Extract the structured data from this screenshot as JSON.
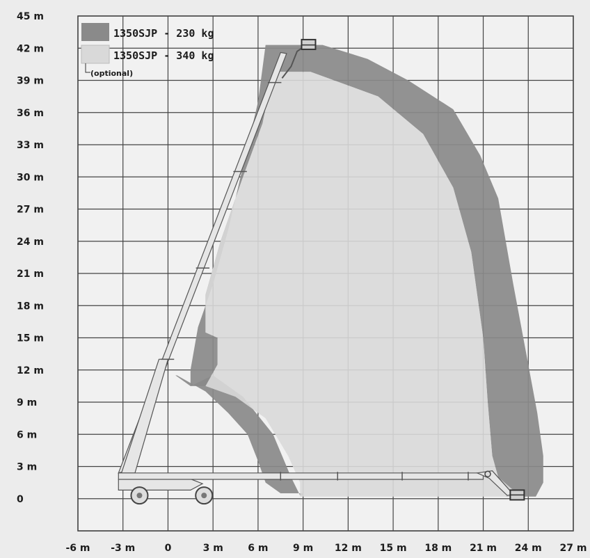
{
  "chart_data": {
    "type": "area",
    "x_ticks": [
      "-6 m",
      "-3 m",
      "0",
      "3 m",
      "6 m",
      "9 m",
      "12 m",
      "15 m",
      "18 m",
      "21 m",
      "24 m",
      "27 m"
    ],
    "y_ticks": [
      "45 m",
      "42 m",
      "39 m",
      "36 m",
      "33 m",
      "30 m",
      "27 m",
      "24 m",
      "21 m",
      "18 m",
      "15 m",
      "12 m",
      "9 m",
      "6 m",
      "3 m",
      "0"
    ],
    "xlim": [
      -6,
      27
    ],
    "ylim": [
      -3,
      45
    ],
    "grid": true,
    "legend_position": "top-left",
    "series": [
      {
        "name": "1350SJP - 230 kg",
        "color": "#8a8a8a",
        "outline": [
          [
            0.5,
            11.5
          ],
          [
            1.5,
            10.5
          ],
          [
            3,
            11.5
          ],
          [
            5,
            9.5
          ],
          [
            7,
            6
          ],
          [
            8.2,
            2
          ],
          [
            8.8,
            0.3
          ],
          [
            9,
            0.3
          ],
          [
            9,
            0.5
          ],
          [
            7.5,
            0.5
          ],
          [
            6.5,
            1.5
          ],
          [
            6,
            3.5
          ],
          [
            5.3,
            6
          ],
          [
            4,
            8
          ],
          [
            2.5,
            10
          ],
          [
            0.6,
            11.5
          ]
        ]
      },
      {
        "name": "1350SJP - 340 kg",
        "note": "(optional)",
        "color": "#d9d9d9",
        "outline": [
          [
            2.5,
            10.5
          ],
          [
            3.3,
            12.5
          ],
          [
            3.3,
            15
          ],
          [
            2.5,
            15.5
          ],
          [
            2.5,
            19
          ],
          [
            3.5,
            24
          ],
          [
            5,
            30
          ],
          [
            6.3,
            35
          ],
          [
            7,
            39.8
          ],
          [
            9.5,
            39.8
          ],
          [
            14,
            37.5
          ],
          [
            17,
            34
          ],
          [
            19,
            29
          ],
          [
            20.2,
            23
          ],
          [
            21,
            15
          ],
          [
            21.3,
            9
          ],
          [
            21.6,
            4
          ],
          [
            22,
            2
          ],
          [
            23,
            0.8
          ],
          [
            22.8,
            0.2
          ],
          [
            8.8,
            0.2
          ],
          [
            8.8,
            1.5
          ],
          [
            8,
            4
          ],
          [
            6.5,
            7.5
          ],
          [
            4.5,
            9.5
          ]
        ]
      }
    ],
    "outer_envelope": [
      [
        1.5,
        10.5
      ],
      [
        1.5,
        12
      ],
      [
        2,
        16
      ],
      [
        3,
        20
      ],
      [
        4,
        25
      ],
      [
        5,
        31
      ],
      [
        6,
        37
      ],
      [
        6.5,
        42.3
      ],
      [
        10.3,
        42.3
      ],
      [
        13.3,
        41
      ],
      [
        16,
        39
      ],
      [
        19,
        36.3
      ],
      [
        20.8,
        32
      ],
      [
        22,
        28
      ],
      [
        23,
        20
      ],
      [
        23.8,
        14
      ],
      [
        24.6,
        8
      ],
      [
        25,
        4
      ],
      [
        25,
        1.5
      ],
      [
        24.5,
        0.2
      ],
      [
        22.5,
        0.2
      ],
      [
        22.8,
        0.8
      ],
      [
        22,
        2
      ],
      [
        21.6,
        4
      ],
      [
        21.3,
        9
      ],
      [
        21,
        15
      ],
      [
        20.2,
        23
      ],
      [
        19,
        29
      ],
      [
        17,
        34
      ],
      [
        14,
        37.5
      ],
      [
        9.5,
        39.8
      ],
      [
        7,
        39.8
      ],
      [
        6.3,
        35
      ],
      [
        5,
        30
      ],
      [
        3.5,
        24
      ],
      [
        2.5,
        19
      ],
      [
        2.5,
        15.5
      ],
      [
        3.3,
        15
      ],
      [
        3.3,
        12.5
      ],
      [
        2.5,
        10.5
      ]
    ]
  }
}
